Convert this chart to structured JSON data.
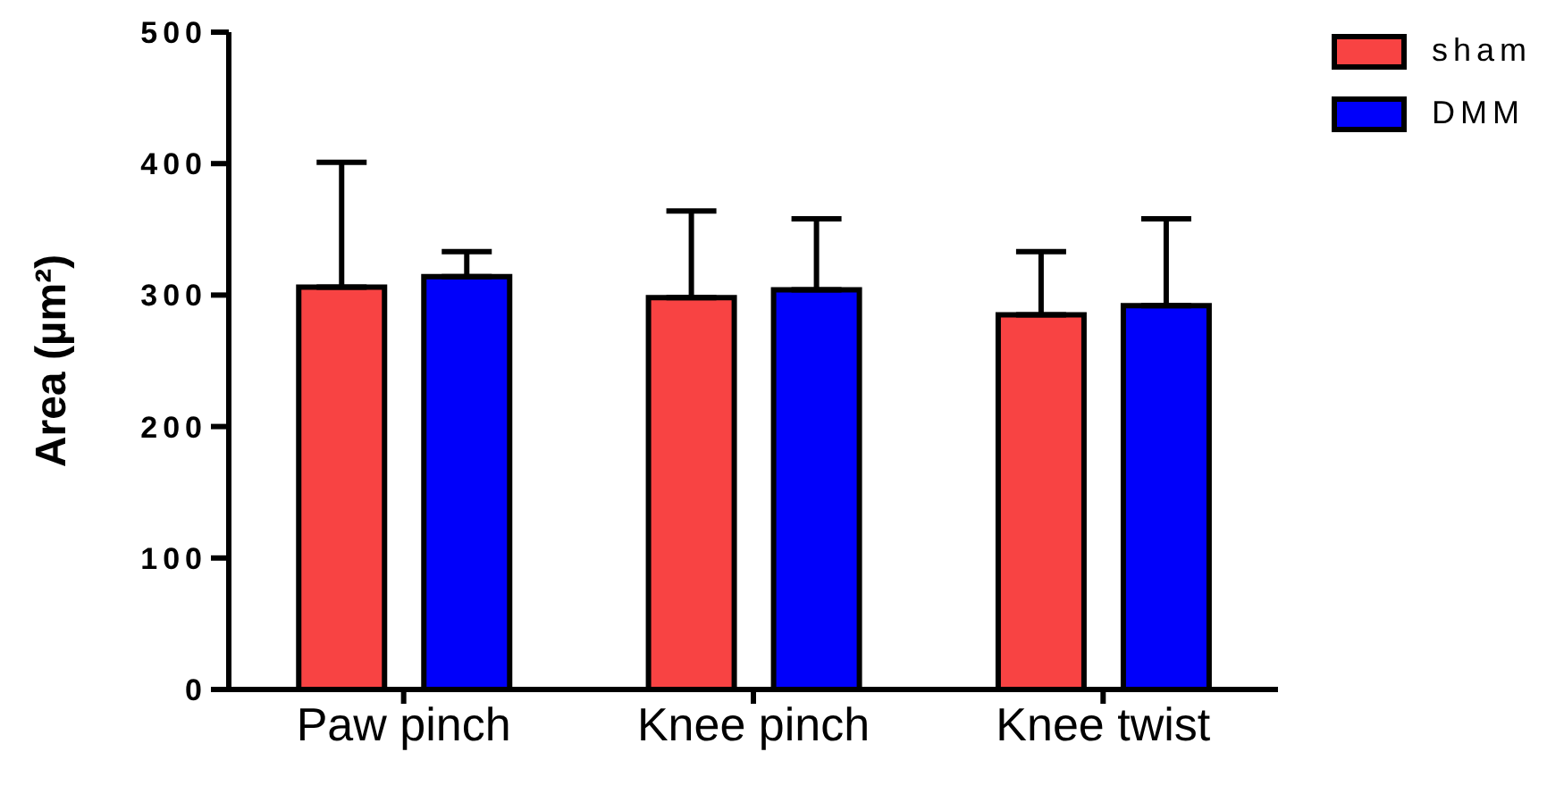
{
  "chart_data": {
    "type": "bar",
    "ylabel": "Area (µm²)",
    "categories": [
      "Paw pinch",
      "Knee pinch",
      "Knee twist"
    ],
    "series": [
      {
        "name": "sham",
        "color": "#f84343",
        "values": [
          306,
          298,
          285
        ],
        "errors": [
          [
            306,
            401
          ],
          [
            298,
            364
          ],
          [
            285,
            333
          ]
        ]
      },
      {
        "name": "DMM",
        "color": "#0000fa",
        "values": [
          314,
          304,
          292
        ],
        "errors": [
          [
            314,
            333
          ],
          [
            304,
            358
          ],
          [
            292,
            358
          ]
        ]
      }
    ],
    "ylim": [
      0,
      500
    ],
    "yticks": [
      0,
      100,
      200,
      300,
      400,
      500
    ],
    "grid": false,
    "legend": "top right"
  }
}
